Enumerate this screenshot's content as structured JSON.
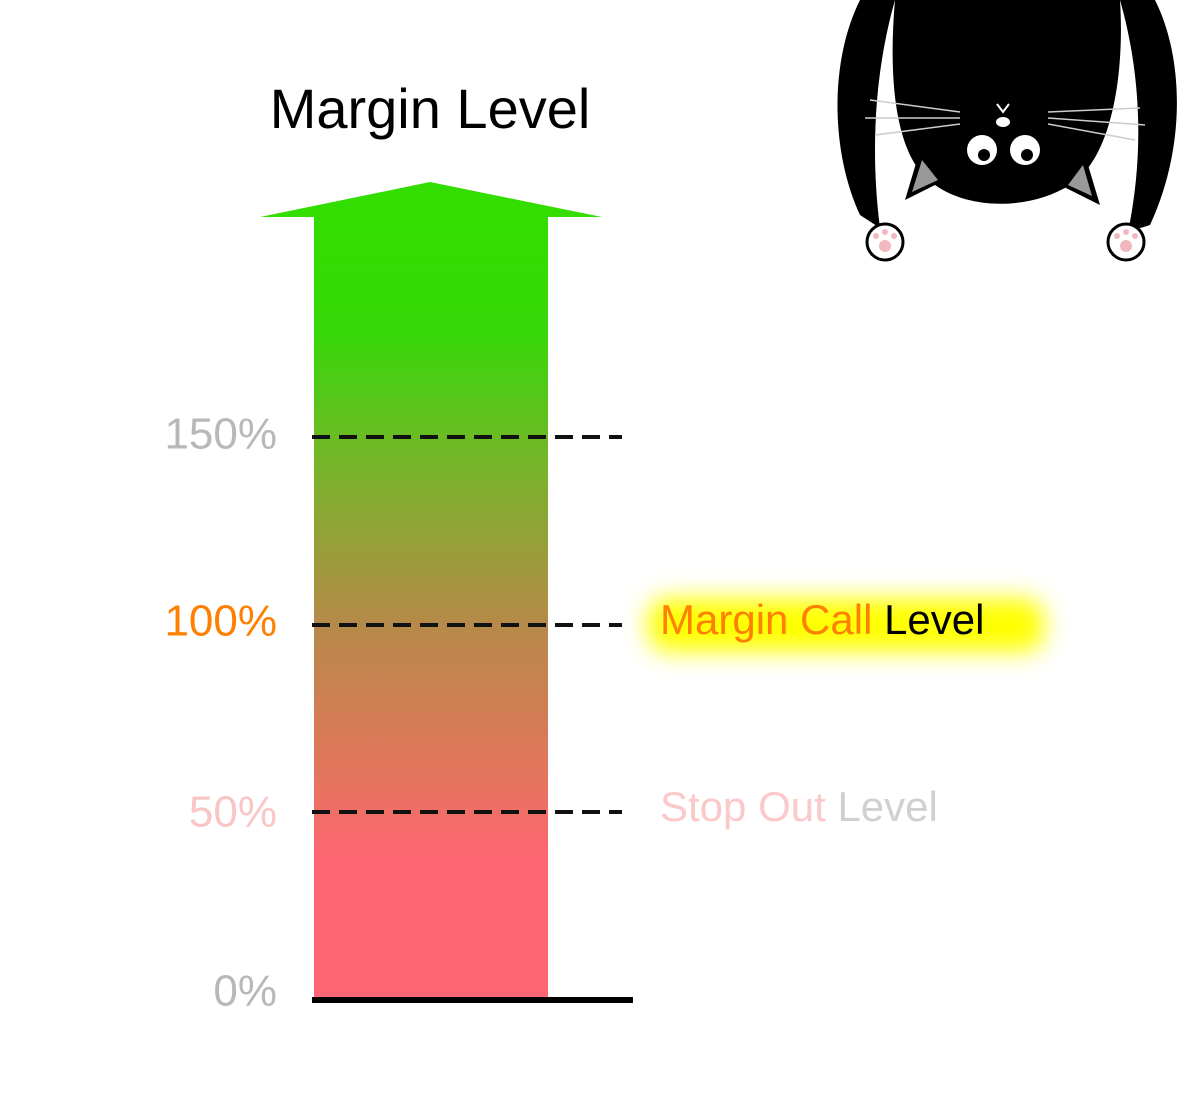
{
  "header": {
    "title": "Margin Level"
  },
  "levels": [
    {
      "label": "150%"
    },
    {
      "label": "100%"
    },
    {
      "label": "50%"
    },
    {
      "label": "0%"
    }
  ],
  "annotations": {
    "margin_call": {
      "highlight": "Margin Call",
      "rest": "Level"
    },
    "stop_out": {
      "highlight": "Stop Out",
      "rest": "Level"
    }
  }
}
